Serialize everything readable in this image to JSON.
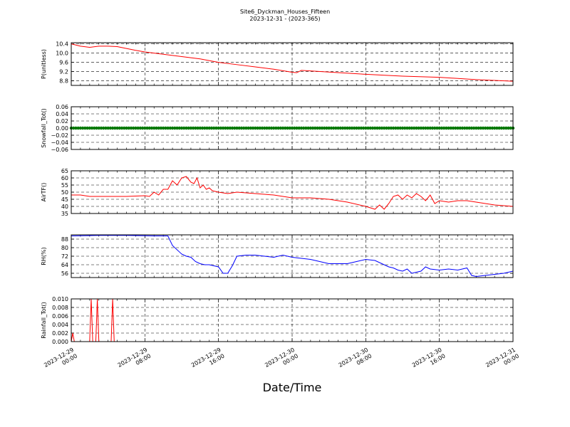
{
  "title_line1": "Site6_Dyckman_Houses_Fifteen",
  "title_line2": "2023-12-31 - (2023-365)",
  "xlabel": "Date/Time",
  "x_ticks": [
    {
      "x": "2023-12-29 00:00",
      "l1": "2023-12-29",
      "l2": "00:00"
    },
    {
      "x": "2023-12-29 08:00",
      "l1": "2023-12-29",
      "l2": "08:00"
    },
    {
      "x": "2023-12-29 16:00",
      "l1": "2023-12-29",
      "l2": "16:00"
    },
    {
      "x": "2023-12-30 00:00",
      "l1": "2023-12-30",
      "l2": "00:00"
    },
    {
      "x": "2023-12-30 08:00",
      "l1": "2023-12-30",
      "l2": "08:00"
    },
    {
      "x": "2023-12-30 16:00",
      "l1": "2023-12-30",
      "l2": "16:00"
    },
    {
      "x": "2023-12-31 00:00",
      "l1": "2023-12-31",
      "l2": "00:00"
    }
  ],
  "chart_data": [
    {
      "type": "line",
      "ylabel": "P(unitless)",
      "color": "#ff0000",
      "ylim": [
        8.6,
        10.45
      ],
      "yticks": [
        "8.8",
        "9.2",
        "9.6",
        "10.0",
        "10.4"
      ],
      "xlim": [
        "2023-12-29 00:00",
        "2023-12-31 00:00"
      ],
      "grid": true,
      "x": [
        "2023-12-29 00:00",
        "2023-12-29 01:00",
        "2023-12-29 02:00",
        "2023-12-29 03:00",
        "2023-12-29 04:00",
        "2023-12-29 05:00",
        "2023-12-29 06:00",
        "2023-12-29 07:00",
        "2023-12-29 08:00",
        "2023-12-29 09:00",
        "2023-12-29 10:00",
        "2023-12-29 12:00",
        "2023-12-29 14:00",
        "2023-12-29 16:00",
        "2023-12-29 18:00",
        "2023-12-29 20:00",
        "2023-12-29 22:00",
        "2023-12-30 00:00",
        "2023-12-30 00:30",
        "2023-12-30 01:00",
        "2023-12-30 04:00",
        "2023-12-30 08:00",
        "2023-12-30 12:00",
        "2023-12-30 16:00",
        "2023-12-30 20:00",
        "2023-12-31 00:00"
      ],
      "y": [
        10.4,
        10.3,
        10.25,
        10.3,
        10.3,
        10.28,
        10.2,
        10.12,
        10.05,
        10.0,
        9.95,
        9.85,
        9.75,
        9.6,
        9.5,
        9.4,
        9.3,
        9.17,
        9.15,
        9.25,
        9.18,
        9.08,
        9.0,
        8.95,
        8.85,
        8.78
      ]
    },
    {
      "type": "scatter",
      "ylabel": "Snowfall_Tot()",
      "color": "#007700",
      "ylim": [
        -0.06,
        0.06
      ],
      "yticks": [
        "0.06",
        "0.04",
        "0.02",
        "0.00",
        "−0.02",
        "−0.04",
        "−0.06"
      ],
      "xlim": [
        "2023-12-29 00:00",
        "2023-12-31 00:00"
      ],
      "grid": true,
      "constant_value": 0.0,
      "x_range": [
        "2023-12-29 00:00",
        "2023-12-31 00:00"
      ]
    },
    {
      "type": "line",
      "ylabel": "AirTF()",
      "color": "#ff0000",
      "ylim": [
        35,
        65
      ],
      "yticks": [
        "65",
        "60",
        "55",
        "50",
        "45",
        "40",
        "35"
      ],
      "xlim": [
        "2023-12-29 00:00",
        "2023-12-31 00:00"
      ],
      "grid": true,
      "x": [
        "2023-12-29 00:00",
        "2023-12-29 01:00",
        "2023-12-29 02:00",
        "2023-12-29 04:00",
        "2023-12-29 06:00",
        "2023-12-29 08:00",
        "2023-12-29 08:30",
        "2023-12-29 09:00",
        "2023-12-29 09:30",
        "2023-12-29 10:00",
        "2023-12-29 10:30",
        "2023-12-29 11:00",
        "2023-12-29 11:30",
        "2023-12-29 12:00",
        "2023-12-29 12:30",
        "2023-12-29 13:00",
        "2023-12-29 13:20",
        "2023-12-29 13:40",
        "2023-12-29 14:00",
        "2023-12-29 14:20",
        "2023-12-29 14:40",
        "2023-12-29 15:00",
        "2023-12-29 15:20",
        "2023-12-29 16:00",
        "2023-12-29 17:00",
        "2023-12-29 18:00",
        "2023-12-29 20:00",
        "2023-12-29 22:00",
        "2023-12-30 00:00",
        "2023-12-30 02:00",
        "2023-12-30 04:00",
        "2023-12-30 06:00",
        "2023-12-30 08:00",
        "2023-12-30 08:30",
        "2023-12-30 09:00",
        "2023-12-30 09:30",
        "2023-12-30 10:00",
        "2023-12-30 10:30",
        "2023-12-30 11:00",
        "2023-12-30 11:30",
        "2023-12-30 12:00",
        "2023-12-30 12:30",
        "2023-12-30 13:00",
        "2023-12-30 13:30",
        "2023-12-30 14:00",
        "2023-12-30 14:30",
        "2023-12-30 15:00",
        "2023-12-30 15:30",
        "2023-12-30 16:00",
        "2023-12-30 17:00",
        "2023-12-30 18:00",
        "2023-12-30 19:00",
        "2023-12-30 20:00",
        "2023-12-30 22:00",
        "2023-12-31 00:00"
      ],
      "y": [
        48,
        48,
        47,
        47,
        47,
        47.5,
        47,
        50,
        48,
        52,
        52,
        58,
        55,
        60,
        61,
        57,
        56,
        60,
        53,
        55,
        52,
        53,
        51,
        50,
        49,
        50,
        49,
        48,
        46,
        46,
        45,
        43,
        40,
        39,
        38,
        41,
        38,
        42,
        47,
        48,
        45,
        48,
        46,
        49,
        47,
        44,
        48,
        42,
        44,
        43,
        44,
        44,
        43,
        41,
        40
      ]
    },
    {
      "type": "line",
      "ylabel": "RH(%)",
      "color": "#0000ff",
      "ylim": [
        52,
        92
      ],
      "yticks": [
        "88",
        "80",
        "72",
        "64",
        "56"
      ],
      "xlim": [
        "2023-12-29 00:00",
        "2023-12-31 00:00"
      ],
      "grid": true,
      "x": [
        "2023-12-29 00:00",
        "2023-12-29 03:00",
        "2023-12-29 06:00",
        "2023-12-29 09:00",
        "2023-12-29 09:30",
        "2023-12-29 10:00",
        "2023-12-29 10:30",
        "2023-12-29 11:00",
        "2023-12-29 12:00",
        "2023-12-29 12:30",
        "2023-12-29 13:00",
        "2023-12-29 13:30",
        "2023-12-29 14:00",
        "2023-12-29 14:30",
        "2023-12-29 15:00",
        "2023-12-29 15:30",
        "2023-12-29 16:00",
        "2023-12-29 16:30",
        "2023-12-29 17:00",
        "2023-12-29 17:30",
        "2023-12-29 18:00",
        "2023-12-29 19:00",
        "2023-12-29 20:00",
        "2023-12-29 21:00",
        "2023-12-29 22:00",
        "2023-12-29 23:00",
        "2023-12-30 00:00",
        "2023-12-30 01:00",
        "2023-12-30 02:00",
        "2023-12-30 03:00",
        "2023-12-30 04:00",
        "2023-12-30 05:00",
        "2023-12-30 06:00",
        "2023-12-30 07:00",
        "2023-12-30 08:00",
        "2023-12-30 09:00",
        "2023-12-30 10:00",
        "2023-12-30 10:30",
        "2023-12-30 11:00",
        "2023-12-30 11:30",
        "2023-12-30 12:00",
        "2023-12-30 12:30",
        "2023-12-30 13:00",
        "2023-12-30 14:00",
        "2023-12-30 14:30",
        "2023-12-30 15:00",
        "2023-12-30 16:00",
        "2023-12-30 17:00",
        "2023-12-30 18:00",
        "2023-12-30 19:00",
        "2023-12-30 19:30",
        "2023-12-30 20:00",
        "2023-12-30 21:00",
        "2023-12-30 22:00",
        "2023-12-30 23:00",
        "2023-12-31 00:00"
      ],
      "y": [
        91,
        91.5,
        91.5,
        91,
        91,
        91,
        91,
        82,
        74,
        72,
        71,
        67,
        65,
        64,
        64,
        63,
        62,
        56,
        56,
        63,
        72,
        73,
        73,
        72,
        71,
        73,
        71,
        70,
        69,
        67,
        65,
        65,
        65,
        67,
        69,
        68,
        64,
        62,
        61,
        59,
        58,
        60,
        56,
        58,
        62,
        60,
        59,
        60,
        59,
        61,
        54,
        53,
        54,
        55,
        56,
        58
      ]
    },
    {
      "type": "line",
      "ylabel": "Rainfall_Tot()",
      "color": "#ff0000",
      "ylim": [
        0.0,
        0.01
      ],
      "yticks": [
        "0.010",
        "0.008",
        "0.006",
        "0.004",
        "0.002",
        "0.000"
      ],
      "xlim": [
        "2023-12-29 00:00",
        "2023-12-31 00:00"
      ],
      "grid": true,
      "x": [
        "2023-12-29 00:00",
        "2023-12-29 00:10",
        "2023-12-29 00:20",
        "2023-12-29 02:00",
        "2023-12-29 02:10",
        "2023-12-29 02:20",
        "2023-12-29 02:40",
        "2023-12-29 02:50",
        "2023-12-29 03:00",
        "2023-12-29 04:20",
        "2023-12-29 04:30",
        "2023-12-29 04:40",
        "2023-12-29 05:00",
        "2023-12-31 00:00"
      ],
      "y": [
        0.0,
        0.002,
        0.0,
        0.0,
        0.01,
        0.0,
        0.0,
        0.01,
        0.0,
        0.0,
        0.01,
        0.0,
        0.0,
        0.0
      ]
    }
  ]
}
